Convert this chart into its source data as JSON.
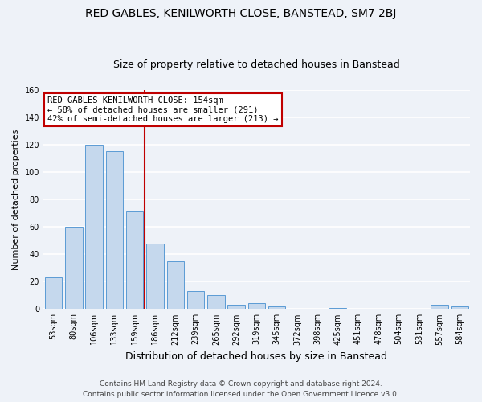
{
  "title": "RED GABLES, KENILWORTH CLOSE, BANSTEAD, SM7 2BJ",
  "subtitle": "Size of property relative to detached houses in Banstead",
  "xlabel": "Distribution of detached houses by size in Banstead",
  "ylabel": "Number of detached properties",
  "bar_labels": [
    "53sqm",
    "80sqm",
    "106sqm",
    "133sqm",
    "159sqm",
    "186sqm",
    "212sqm",
    "239sqm",
    "265sqm",
    "292sqm",
    "319sqm",
    "345sqm",
    "372sqm",
    "398sqm",
    "425sqm",
    "451sqm",
    "478sqm",
    "504sqm",
    "531sqm",
    "557sqm",
    "584sqm"
  ],
  "bar_values": [
    23,
    60,
    120,
    115,
    71,
    48,
    35,
    13,
    10,
    3,
    4,
    2,
    0,
    0,
    1,
    0,
    0,
    0,
    0,
    3,
    2
  ],
  "bar_color": "#c5d8ed",
  "bar_edge_color": "#5b9bd5",
  "marker_index": 4,
  "marker_line_color": "#c00000",
  "annotation_line1": "RED GABLES KENILWORTH CLOSE: 154sqm",
  "annotation_line2": "← 58% of detached houses are smaller (291)",
  "annotation_line3": "42% of semi-detached houses are larger (213) →",
  "annotation_box_color": "#ffffff",
  "annotation_box_edge": "#c00000",
  "ylim": [
    0,
    160
  ],
  "yticks": [
    0,
    20,
    40,
    60,
    80,
    100,
    120,
    140,
    160
  ],
  "footer_line1": "Contains HM Land Registry data © Crown copyright and database right 2024.",
  "footer_line2": "Contains public sector information licensed under the Open Government Licence v3.0.",
  "background_color": "#eef2f8",
  "grid_color": "#ffffff",
  "title_fontsize": 10,
  "subtitle_fontsize": 9,
  "xlabel_fontsize": 9,
  "ylabel_fontsize": 8,
  "tick_fontsize": 7,
  "annotation_fontsize": 7.5,
  "footer_fontsize": 6.5
}
